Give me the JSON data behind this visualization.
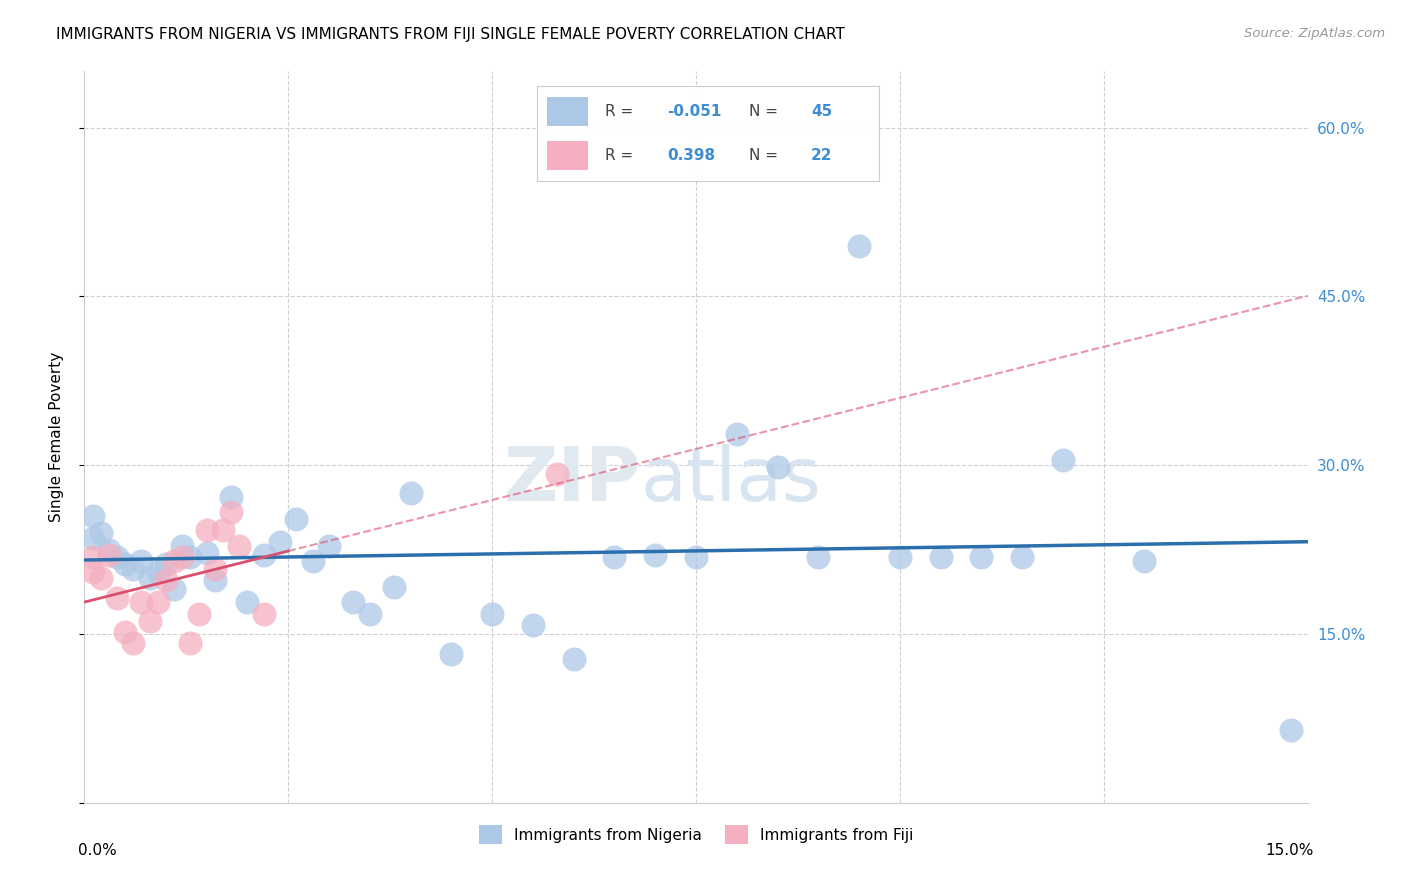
{
  "title": "IMMIGRANTS FROM NIGERIA VS IMMIGRANTS FROM FIJI SINGLE FEMALE POVERTY CORRELATION CHART",
  "source": "Source: ZipAtlas.com",
  "ylabel": "Single Female Poverty",
  "xlim": [
    0.0,
    0.15
  ],
  "ylim": [
    0.0,
    0.65
  ],
  "legend_label1": "Immigrants from Nigeria",
  "legend_label2": "Immigrants from Fiji",
  "r1": -0.051,
  "n1": 45,
  "r2": 0.398,
  "n2": 22,
  "color1": "#adc8e6",
  "color2": "#f4afc0",
  "trendline1_color": "#2c6fad",
  "trendline2_color": "#d94f6e",
  "nigeria_x": [
    0.001,
    0.001,
    0.002,
    0.003,
    0.004,
    0.005,
    0.006,
    0.007,
    0.008,
    0.009,
    0.01,
    0.011,
    0.012,
    0.013,
    0.015,
    0.016,
    0.018,
    0.02,
    0.022,
    0.024,
    0.026,
    0.028,
    0.03,
    0.033,
    0.035,
    0.038,
    0.04,
    0.045,
    0.05,
    0.055,
    0.06,
    0.065,
    0.07,
    0.075,
    0.08,
    0.085,
    0.09,
    0.095,
    0.1,
    0.105,
    0.11,
    0.115,
    0.12,
    0.13,
    0.148
  ],
  "nigeria_y": [
    0.255,
    0.235,
    0.24,
    0.225,
    0.218,
    0.212,
    0.208,
    0.215,
    0.2,
    0.205,
    0.212,
    0.19,
    0.228,
    0.218,
    0.222,
    0.198,
    0.272,
    0.178,
    0.22,
    0.232,
    0.252,
    0.215,
    0.228,
    0.178,
    0.168,
    0.192,
    0.275,
    0.132,
    0.168,
    0.158,
    0.128,
    0.218,
    0.22,
    0.218,
    0.328,
    0.298,
    0.218,
    0.495,
    0.218,
    0.218,
    0.218,
    0.218,
    0.305,
    0.215,
    0.065
  ],
  "fiji_x": [
    0.001,
    0.001,
    0.002,
    0.003,
    0.004,
    0.005,
    0.006,
    0.007,
    0.008,
    0.009,
    0.01,
    0.011,
    0.012,
    0.013,
    0.014,
    0.015,
    0.016,
    0.017,
    0.018,
    0.019,
    0.022,
    0.058
  ],
  "fiji_y": [
    0.218,
    0.205,
    0.2,
    0.22,
    0.182,
    0.152,
    0.142,
    0.178,
    0.162,
    0.178,
    0.198,
    0.215,
    0.218,
    0.142,
    0.168,
    0.242,
    0.208,
    0.242,
    0.258,
    0.228,
    0.168,
    0.292
  ]
}
